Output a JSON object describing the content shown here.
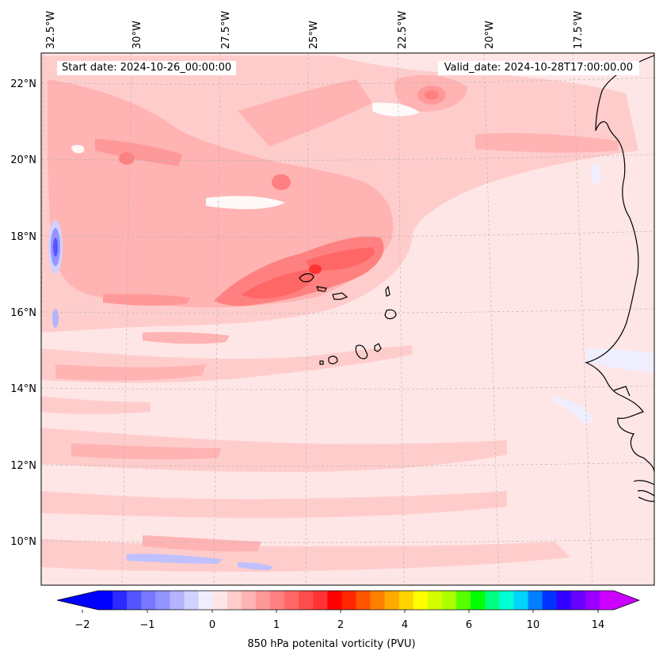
{
  "header": {
    "start_date": "Start date: 2024-10-26_00:00:00",
    "valid_date": "Valid_date: 2024-10-28T17:00:00.00"
  },
  "map": {
    "lon_labels": [
      "32.5°W",
      "30°W",
      "27.5°W",
      "25°W",
      "22.5°W",
      "20°W",
      "17.5°W"
    ],
    "lat_labels": [
      "22°N",
      "20°N",
      "18°N",
      "16°N",
      "14°N",
      "12°N",
      "10°N"
    ],
    "background_color": "#ffe6e6",
    "gridlines": true,
    "coastline_color": "#000000"
  },
  "colorbar": {
    "title": "850 hPa potenital vorticity (PVU)",
    "tick_labels": [
      "−2",
      "−1",
      "0",
      "1",
      "2",
      "4",
      "6",
      "10",
      "14"
    ],
    "extend": "both",
    "colors": [
      "#0000ff",
      "#2a2aff",
      "#5555ff",
      "#7878ff",
      "#9494ff",
      "#b3b3ff",
      "#d1d1ff",
      "#eeeeff",
      "#ffe6e6",
      "#ffcccc",
      "#ffb3b3",
      "#ff9999",
      "#ff8080",
      "#ff6666",
      "#ff4d4d",
      "#ff3333",
      "#ff0000",
      "#ff2600",
      "#ff5500",
      "#ff8000",
      "#ffaa00",
      "#ffd400",
      "#ffff00",
      "#d4ff00",
      "#aaff00",
      "#55ff00",
      "#00ff00",
      "#00ff80",
      "#00ffd4",
      "#00d4ff",
      "#0080ff",
      "#0033ff",
      "#3300ff",
      "#6600ff",
      "#9900ff",
      "#cc00ff"
    ]
  }
}
